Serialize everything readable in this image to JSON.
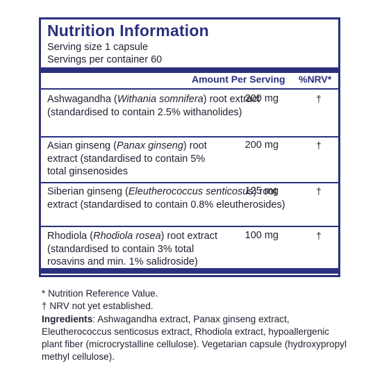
{
  "title": "Nutrition Information",
  "serving_size": "Serving size  1 capsule",
  "servings_per_container": "Servings per container  60",
  "columns": {
    "amount": "Amount Per Serving",
    "nrv": "%NRV*"
  },
  "rows": [
    {
      "name_pre": "Ashwagandha (",
      "name_italic": "Withania somnifera",
      "name_post": ") root extract (standardised to contain 2.5% withanolides)",
      "amount": "200 mg",
      "nrv": "†"
    },
    {
      "name_pre": "Asian ginseng (",
      "name_italic": "Panax ginseng",
      "name_post": ") root extract (standardised to contain 5% total ginsenosides",
      "amount": "200 mg",
      "nrv": "†"
    },
    {
      "name_pre": "Siberian ginseng (",
      "name_italic": "Eleutherococcus senticosus",
      "name_post": ") root extract (standardised to contain 0.8% eleutherosides)",
      "amount": "125 mg",
      "nrv": "†"
    },
    {
      "name_pre": "Rhodiola (",
      "name_italic": "Rhodiola rosea",
      "name_post": ") root extract (standardised to contain 3% total rosavins and min. 1% salidroside)",
      "amount": "100 mg",
      "nrv": "†"
    }
  ],
  "footnote_nrv": "* Nutrition Reference Value.",
  "footnote_dagger": "† NRV not yet established.",
  "ingredients_label": "Ingredients",
  "ingredients_text": ": Ashwagandha extract, Panax ginseng extract, Eleutherococcus senticosus extract, Rhodiola extract, hypoallergenic plant fiber (microcrystalline cellulose). Vegetarian capsule (hydroxypropyl methyl cellulose)."
}
